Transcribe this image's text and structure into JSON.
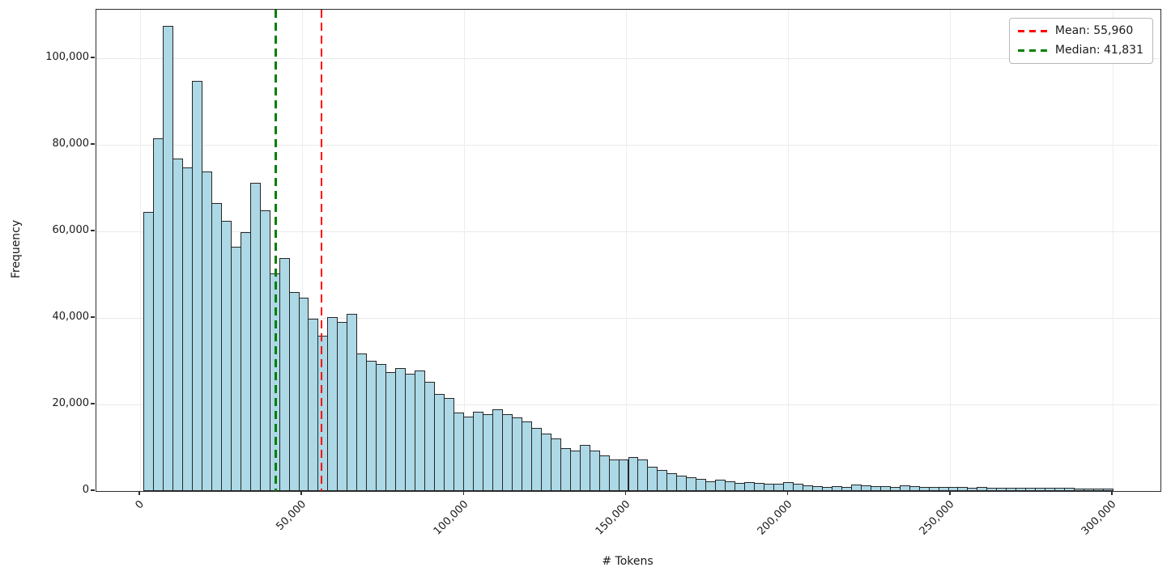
{
  "figure": {
    "background": "#ffffff"
  },
  "chart_data": {
    "type": "bar",
    "subtype": "histogram",
    "title": "",
    "xlabel": "# Tokens",
    "ylabel": "Frequency",
    "grid": true,
    "legend_position": "upper right",
    "xlim": [
      -13500,
      314700
    ],
    "ylim": [
      0,
      111200
    ],
    "x_ticks": [
      0,
      50000,
      100000,
      150000,
      200000,
      250000,
      300000
    ],
    "x_tick_labels": [
      "0",
      "50,000",
      "100,000",
      "150,000",
      "200,000",
      "250,000",
      "300,000"
    ],
    "y_ticks": [
      0,
      20000,
      40000,
      60000,
      80000,
      100000
    ],
    "y_tick_labels": [
      "0",
      "20,000",
      "40,000",
      "60,000",
      "80,000",
      "100,000"
    ],
    "bin_start": 1000,
    "bin_width": 2990,
    "bar_fill": "#ADD8E6",
    "bar_edge": "#262626",
    "values": [
      64500,
      81500,
      107500,
      76800,
      74800,
      94800,
      73800,
      66500,
      62500,
      56500,
      59800,
      71200,
      64800,
      50300,
      53800,
      46000,
      44700,
      39800,
      35900,
      40200,
      39000,
      41000,
      31800,
      30100,
      29300,
      27400,
      28400,
      27100,
      27900,
      25200,
      22400,
      21500,
      18100,
      17200,
      18400,
      17700,
      18900,
      17700,
      17100,
      16100,
      14600,
      13300,
      12100,
      10000,
      9300,
      10600,
      9300,
      8300,
      7300,
      7200,
      7800,
      7300,
      5700,
      4900,
      4200,
      3500,
      3200,
      2800,
      2300,
      2700,
      2300,
      1900,
      2100,
      1900,
      1650,
      1750,
      2000,
      1650,
      1300,
      1150,
      1000,
      1150,
      950,
      1450,
      1250,
      1100,
      1050,
      1000,
      1300,
      1200,
      1000,
      950,
      900,
      1000,
      880,
      820,
      860,
      800,
      760,
      800,
      740,
      700,
      760,
      700,
      660,
      700,
      640,
      620,
      650,
      600
    ],
    "lines": [
      {
        "name": "mean",
        "value": 55960,
        "label": "Mean: 55,960",
        "color": "#ff0000",
        "style": "dashed"
      },
      {
        "name": "median",
        "value": 41831,
        "label": "Median: 41,831",
        "color": "#008000",
        "style": "dashed"
      }
    ]
  }
}
